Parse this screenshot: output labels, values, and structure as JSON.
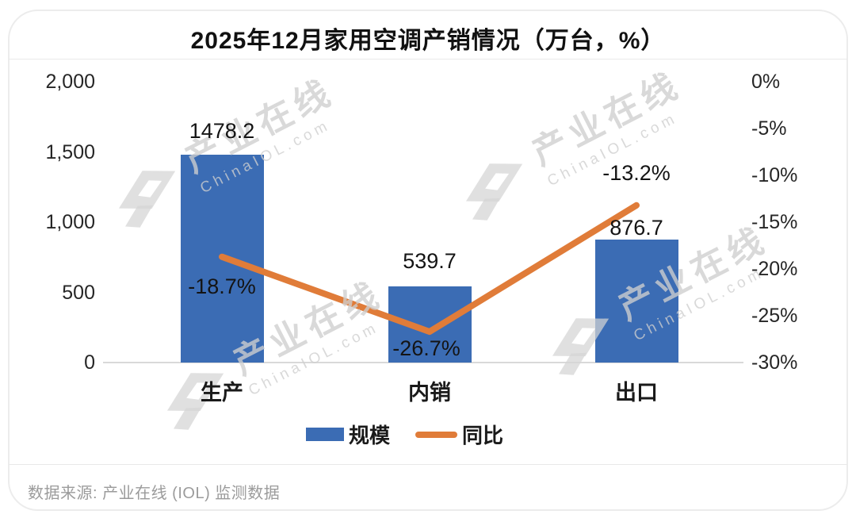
{
  "chart_data": {
    "type": "combo bar+line",
    "title": "2025年12月家用空调产销情况（万台，%）",
    "categories": [
      "生产",
      "内销",
      "出口"
    ],
    "series": [
      {
        "name": "规模",
        "type": "bar",
        "axis": "left",
        "color": "#3B6CB4",
        "values": [
          1478.2,
          539.7,
          876.7
        ],
        "data_labels": [
          "1478.2",
          "539.7",
          "876.7"
        ]
      },
      {
        "name": "同比",
        "type": "line",
        "axis": "right",
        "color": "#E07C39",
        "values": [
          -18.7,
          -26.7,
          -13.2
        ],
        "data_labels": [
          "-18.7%",
          "-26.7%",
          "-13.2%"
        ]
      }
    ],
    "left_axis": {
      "min": 0,
      "max": 2000,
      "tick_labels": [
        "2,000",
        "1,500",
        "1,000",
        "500",
        "0"
      ]
    },
    "right_axis": {
      "min": -30,
      "max": 0,
      "tick_labels": [
        "0%",
        "-5%",
        "-10%",
        "-15%",
        "-20%",
        "-25%",
        "-30%"
      ]
    },
    "grid": false,
    "legend_position": "bottom"
  },
  "watermark": {
    "text_cn": "产业在线",
    "text_en": "ChinaIOL.com"
  },
  "footer": {
    "source_note": "数据来源: 产业在线 (IOL) 监测数据"
  }
}
